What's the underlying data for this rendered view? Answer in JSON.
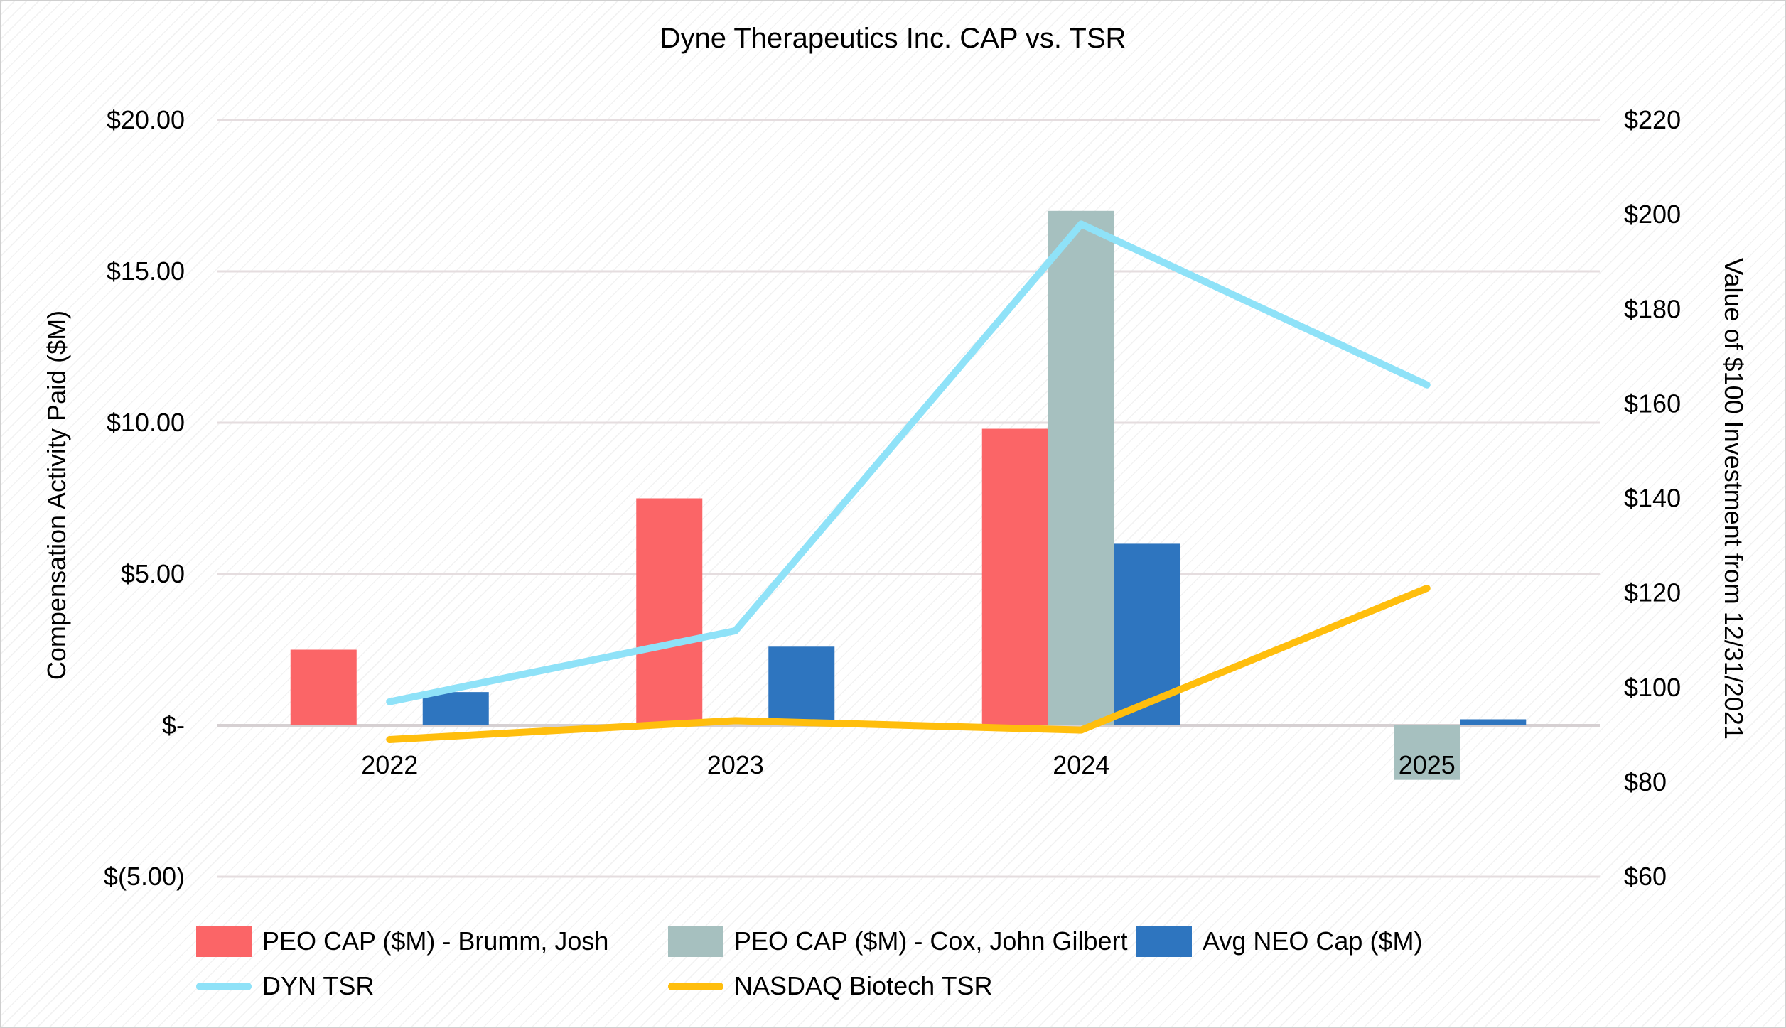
{
  "page": {
    "title": "Dyne Therapeutics Inc. CAP vs. TSR"
  },
  "colors": {
    "background": "#FFFFFF",
    "page_border": "#CFCFCF",
    "gridline": "#E5DDDF",
    "zero_line": "#D6D0D2",
    "text": "#000000"
  },
  "chart_data": {
    "type": "combo-bar-line",
    "title": "Dyne Therapeutics Inc. CAP vs. TSR",
    "categories": [
      "2022",
      "2023",
      "2024",
      "2025"
    ],
    "bar_series": [
      {
        "name": "PEO CAP ($M) - Brumm, Josh",
        "color": "#FB6567",
        "axis": "left",
        "values": [
          2.5,
          7.5,
          9.8,
          null
        ]
      },
      {
        "name": "PEO CAP ($M) - Cox, John Gilbert",
        "color": "#A6C0BF",
        "axis": "left",
        "values": [
          null,
          null,
          17.0,
          -1.8
        ]
      },
      {
        "name": "Avg NEO Cap ($M)",
        "color": "#2E75BF",
        "axis": "left",
        "values": [
          1.1,
          2.6,
          6.0,
          0.2
        ]
      }
    ],
    "line_series": [
      {
        "name": "DYN TSR",
        "color": "#8FE2F8",
        "axis": "right",
        "values": [
          97,
          112,
          198,
          164
        ]
      },
      {
        "name": "NASDAQ Biotech TSR",
        "color": "#FFBE0D",
        "axis": "right",
        "values": [
          89,
          93,
          91,
          121
        ]
      }
    ],
    "left_axis": {
      "title": "Compensation Activity Paid ($M)",
      "min": -5,
      "max": 20,
      "ticks": [
        {
          "value": 20,
          "label": "$20.00"
        },
        {
          "value": 15,
          "label": "$15.00"
        },
        {
          "value": 10,
          "label": "$10.00"
        },
        {
          "value": 5,
          "label": "$5.00"
        },
        {
          "value": 0,
          "label": "$-"
        },
        {
          "value": -5,
          "label": "$(5.00)"
        }
      ]
    },
    "right_axis": {
      "title": "Value of $100 Investment from 12/31/2021",
      "min": 60,
      "max": 220,
      "ticks": [
        {
          "value": 220,
          "label": "$220"
        },
        {
          "value": 200,
          "label": "$200"
        },
        {
          "value": 180,
          "label": "$180"
        },
        {
          "value": 160,
          "label": "$160"
        },
        {
          "value": 140,
          "label": "$140"
        },
        {
          "value": 120,
          "label": "$120"
        },
        {
          "value": 100,
          "label": "$100"
        },
        {
          "value": 80,
          "label": "$80"
        },
        {
          "value": 60,
          "label": "$60"
        }
      ]
    },
    "grid": true,
    "legend_position": "bottom"
  }
}
